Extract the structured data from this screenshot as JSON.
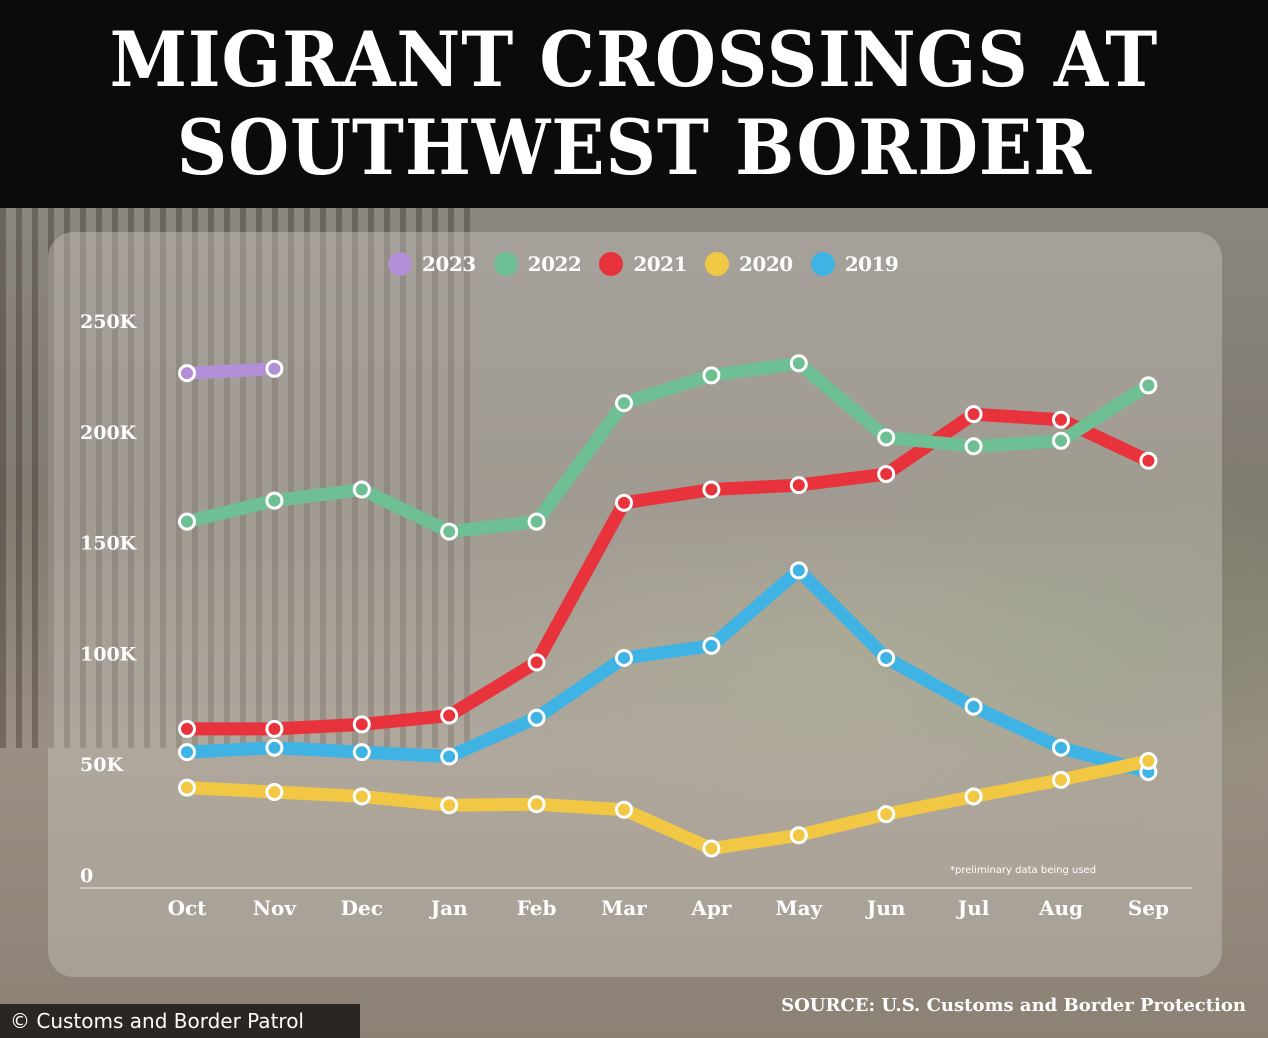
{
  "header": {
    "title_line1": "MIGRANT CROSSINGS AT",
    "title_line2": "SOUTHWEST BORDER"
  },
  "credit": "© Customs and Border Patrol",
  "source": "SOURCE: U.S. Customs and Border Protection",
  "note": "*preliminary data being used",
  "colors": {
    "2023": "#b28fd6",
    "2022": "#6fbf94",
    "2021": "#e8323c",
    "2020": "#f2c744",
    "2019": "#3fb3e3"
  },
  "chart_data": {
    "type": "line",
    "title": "MIGRANT CROSSINGS AT SOUTHWEST BORDER",
    "categories": [
      "Oct",
      "Nov",
      "Dec",
      "Jan",
      "Feb",
      "Mar",
      "Apr",
      "May",
      "Jun",
      "Jul",
      "Aug",
      "Sep"
    ],
    "y_ticks": [
      "0",
      "50K",
      "100K",
      "150K",
      "200K",
      "250K"
    ],
    "ylim": [
      0,
      250000
    ],
    "grid": false,
    "legend_position": "top-center",
    "series": [
      {
        "name": "2023",
        "color": "#b28fd6",
        "values": [
          226000,
          228000,
          null,
          null,
          null,
          null,
          null,
          null,
          null,
          null,
          null,
          null
        ]
      },
      {
        "name": "2022",
        "color": "#6fbf94",
        "values": [
          159000,
          168500,
          173500,
          154500,
          159000,
          212500,
          225000,
          230500,
          197000,
          193000,
          195500,
          220500
        ]
      },
      {
        "name": "2021",
        "color": "#e8323c",
        "values": [
          65500,
          65500,
          67500,
          71500,
          95500,
          167500,
          173500,
          175500,
          180500,
          207500,
          205000,
          186500
        ]
      },
      {
        "name": "2020",
        "color": "#f2c744",
        "values": [
          39000,
          37000,
          35000,
          31000,
          31500,
          29000,
          11500,
          17500,
          27000,
          35000,
          42500,
          51000
        ]
      },
      {
        "name": "2019",
        "color": "#3fb3e3",
        "values": [
          55000,
          57000,
          55000,
          53000,
          70500,
          97500,
          103000,
          137000,
          97500,
          75500,
          57000,
          46000
        ]
      }
    ]
  }
}
